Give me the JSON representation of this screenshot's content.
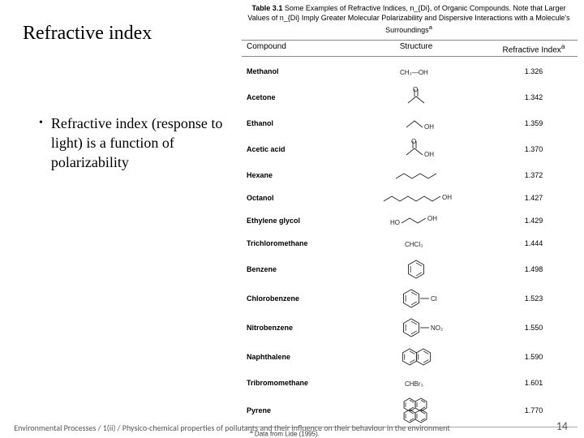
{
  "title": "Refractive index",
  "bullet": "Refractive index (response to light) is a function of polarizability",
  "footer": "Environmental Processes / 1(ii) / Physico-chemical properties of pollutants and their influence on their behaviour in the environment",
  "page": "14",
  "table": {
    "caption_bold": "Table 3.1",
    "caption_rest": " Some Examples of Refractive Indices, n_{Di}, of Organic Compounds. Note that Larger Values of n_{Di} Imply Greater Molecular Polarizability and Dispersive Interactions with a Molecule's Surroundings",
    "caption_sup": "a",
    "headers": {
      "compound": "Compound",
      "structure": "Structure",
      "ri": "Refractive Index",
      "ri_sup": "a"
    },
    "rows": [
      {
        "compound": "Methanol",
        "structure": "methanol",
        "ri": "1.326"
      },
      {
        "compound": "Acetone",
        "structure": "acetone",
        "ri": "1.342"
      },
      {
        "compound": "Ethanol",
        "structure": "ethanol",
        "ri": "1.359"
      },
      {
        "compound": "Acetic acid",
        "structure": "acetic",
        "ri": "1.370"
      },
      {
        "compound": "Hexane",
        "structure": "hexane",
        "ri": "1.372"
      },
      {
        "compound": "Octanol",
        "structure": "octanol",
        "ri": "1.427"
      },
      {
        "compound": "Ethylene glycol",
        "structure": "glycol",
        "ri": "1.429"
      },
      {
        "compound": "Trichloromethane",
        "structure": "chcl3",
        "ri": "1.444"
      },
      {
        "compound": "Benzene",
        "structure": "benzene",
        "ri": "1.498"
      },
      {
        "compound": "Chlorobenzene",
        "structure": "clbenz",
        "ri": "1.523"
      },
      {
        "compound": "Nitrobenzene",
        "structure": "no2benz",
        "ri": "1.550"
      },
      {
        "compound": "Naphthalene",
        "structure": "naph",
        "ri": "1.590"
      },
      {
        "compound": "Tribromomethane",
        "structure": "chbr3",
        "ri": "1.601"
      },
      {
        "compound": "Pyrene",
        "structure": "pyrene",
        "ri": "1.770"
      }
    ],
    "footnote_sup": "a",
    "footnote": " Data from Lide (1995)."
  },
  "style": {
    "text_color": "#000000",
    "footer_color": "#555555",
    "border_color": "#888888",
    "background": "#ffffff",
    "title_fontsize": 24,
    "body_fontsize": 18,
    "table_fontsize": 9
  }
}
